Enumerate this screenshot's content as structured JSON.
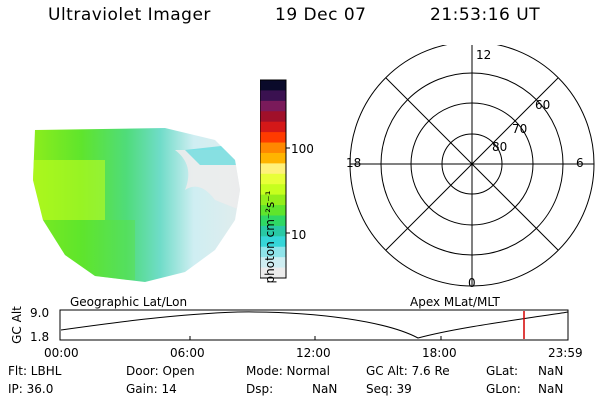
{
  "header": {
    "instrument": "Ultraviolet Imager",
    "date": "19 Dec 07",
    "time": "21:53:16 UT"
  },
  "colorbar": {
    "unit_label": "photon cm⁻²s⁻¹",
    "tick_labels": [
      "100",
      "10"
    ],
    "colors": [
      "#0a0a2a",
      "#3a1150",
      "#7a1a5a",
      "#a0102a",
      "#d41818",
      "#ff3b00",
      "#ff8800",
      "#ffb400",
      "#fff17a",
      "#e8ff38",
      "#c6ff1e",
      "#93ee1a",
      "#5fe52c",
      "#2fd864",
      "#29c9a4",
      "#35d6d8",
      "#8fe4ea",
      "#cfeef2",
      "#ececec"
    ]
  },
  "polar_plot": {
    "labels_mlt": [
      "12",
      "18",
      "6",
      "0"
    ],
    "labels_lat": [
      "60",
      "70",
      "80"
    ]
  },
  "left_label": "Geographic Lat/Lon",
  "right_label": "Apex MLat/MLT",
  "altitude_plot": {
    "axis_label": "GC Alt",
    "y_ticks": [
      "9.0",
      "1.8"
    ],
    "x_ticks": [
      "00:00",
      "06:00",
      "12:00",
      "18:00",
      "23:59"
    ],
    "marker_color": "#d40000"
  },
  "info": {
    "flt": "Flt: LBHL",
    "ip": "IP: 36.0",
    "door": "Door: Open",
    "gain": "Gain: 14",
    "mode": "Mode: Normal",
    "dsp": "Dsp:",
    "dsp_val": "NaN",
    "gc_alt": "GC Alt: 7.6 Re",
    "seq": "Seq: 39",
    "glat": "GLat:",
    "glat_val": "NaN",
    "glon": "GLon:",
    "glon_val": "NaN"
  }
}
